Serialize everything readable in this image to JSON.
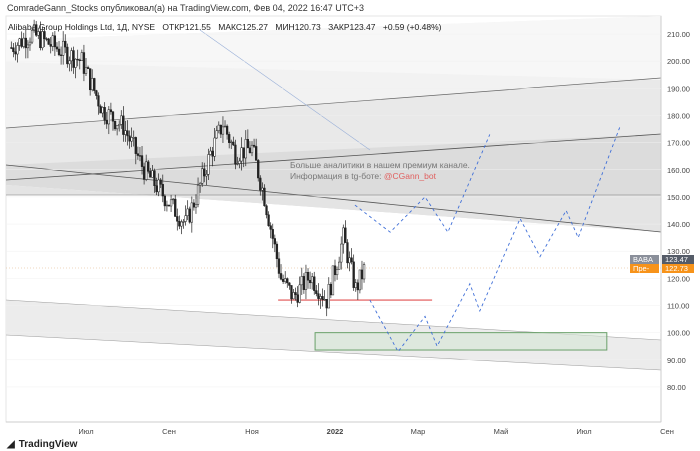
{
  "header": {
    "published": "ComradeGann_Stocks опубликовал(а) на TradingView.com, Фев 04, 2022 16:47 UTC+3"
  },
  "legend": {
    "symbol": "Alibaba Group Holdings Ltd, 1Д, NYSE",
    "open": "ОТКР121.55",
    "high": "МАКС125.27",
    "low": "МИН120.73",
    "close": "ЗАКР123.47",
    "change": "+0.59 (+0.48%)"
  },
  "promo": {
    "line1": "Больше аналитики в нашем премиум канале.",
    "line2_prefix": "Информация в tg-боте: ",
    "bot": "@CGann_bot"
  },
  "tags": {
    "symbol": "BABA",
    "symbol_price": "123.47",
    "pre": "Пре-",
    "pre_price": "122.73"
  },
  "footer": {
    "brand": "TradingView"
  },
  "colors": {
    "up": "#ffffff",
    "down": "#222222",
    "pre": "#f7931a",
    "projection": "#3f6fd8",
    "support": "#e05050",
    "zone": "#6aa06a"
  },
  "chart_data": {
    "type": "candlestick",
    "title": "Alibaba Group Holdings Ltd, 1Д, NYSE",
    "ylim": [
      75,
      215
    ],
    "y_ticks": [
      210,
      200,
      190,
      180,
      170,
      160,
      150,
      140,
      130,
      120,
      110,
      100,
      90,
      80
    ],
    "x_ticks": [
      "Июл",
      "Сен",
      "Ноя",
      "2022",
      "Мар",
      "Май",
      "Июл",
      "Сен"
    ],
    "x_units": "months from July 2021 (Июл=0)",
    "price_path": [
      [
        -1.8,
        205
      ],
      [
        -1.3,
        210
      ],
      [
        -0.6,
        204
      ],
      [
        -0.1,
        200
      ],
      [
        0.4,
        182
      ],
      [
        0.9,
        176
      ],
      [
        1.4,
        160
      ],
      [
        1.9,
        150
      ],
      [
        2.4,
        140
      ],
      [
        2.7,
        152
      ],
      [
        3.0,
        166
      ],
      [
        3.3,
        177
      ],
      [
        3.6,
        166
      ],
      [
        4.0,
        168
      ],
      [
        4.3,
        150
      ],
      [
        4.7,
        120
      ],
      [
        5.0,
        113
      ],
      [
        5.4,
        121
      ],
      [
        5.8,
        112
      ],
      [
        6.2,
        135
      ],
      [
        6.5,
        116
      ],
      [
        6.7,
        123
      ]
    ],
    "projection_upper": [
      [
        6.48,
        147
      ],
      [
        7.33,
        137
      ],
      [
        8.17,
        150
      ],
      [
        8.72,
        137
      ],
      [
        9.73,
        173
      ]
    ],
    "projection_lower": [
      [
        6.84,
        112
      ],
      [
        7.52,
        93
      ],
      [
        8.17,
        106
      ],
      [
        8.46,
        95
      ],
      [
        9.25,
        118
      ],
      [
        9.49,
        108
      ],
      [
        10.46,
        142
      ],
      [
        10.94,
        128
      ],
      [
        11.57,
        145
      ],
      [
        11.86,
        135
      ],
      [
        12.87,
        176
      ]
    ],
    "support_line": {
      "price": 112,
      "from": 4.63,
      "to": 8.34
    },
    "target_zone": {
      "top": 100,
      "bottom": 93.6,
      "from": 5.52,
      "to": 12.55
    },
    "last_price": 123.47,
    "pre_price": 122.73
  }
}
